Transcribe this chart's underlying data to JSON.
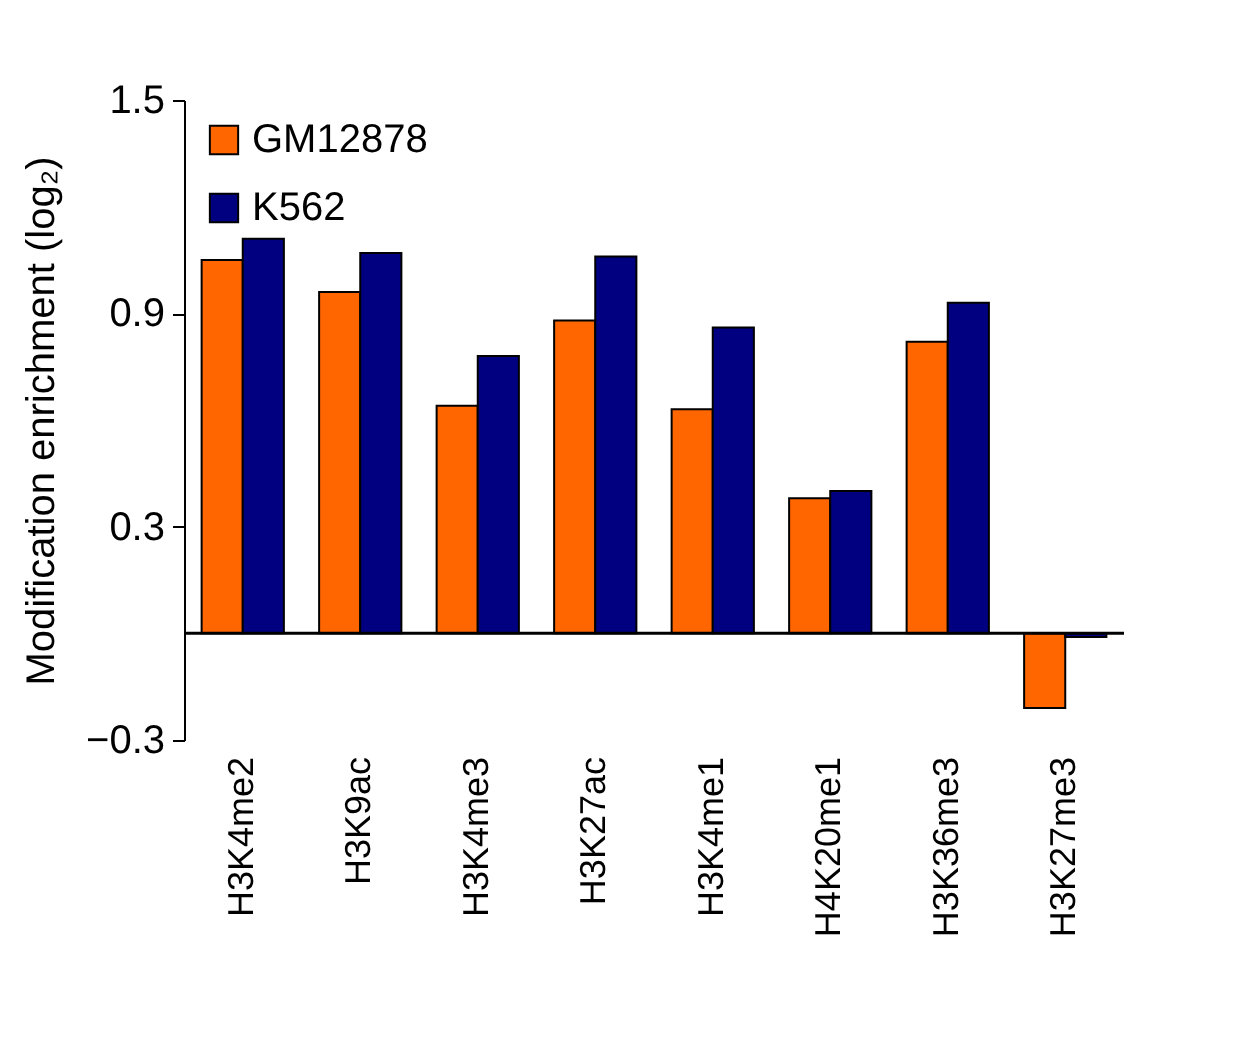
{
  "chart_data": {
    "type": "bar",
    "ylabel": "Modification enrichment (log₂)",
    "categories": [
      "H3K4me2",
      "H3K9ac",
      "H3K4me3",
      "H3K27ac",
      "H3K4me1",
      "H4K20me1",
      "H3K36me3",
      "H3K27me3"
    ],
    "series": [
      {
        "name": "GM12878",
        "color": "#ff6600",
        "values": [
          1.05,
          0.96,
          0.64,
          0.88,
          0.63,
          0.38,
          0.82,
          -0.21
        ]
      },
      {
        "name": "K562",
        "color": "#000080",
        "values": [
          1.11,
          1.07,
          0.78,
          1.06,
          0.86,
          0.4,
          0.93,
          -0.01
        ]
      }
    ],
    "ylim": [
      -0.3,
      1.5
    ],
    "yticks": [
      -0.3,
      0.3,
      0.9,
      1.5
    ],
    "grid": false,
    "legend": "top left",
    "ref_lines": [
      {
        "axis": "y",
        "value": 0
      }
    ]
  }
}
